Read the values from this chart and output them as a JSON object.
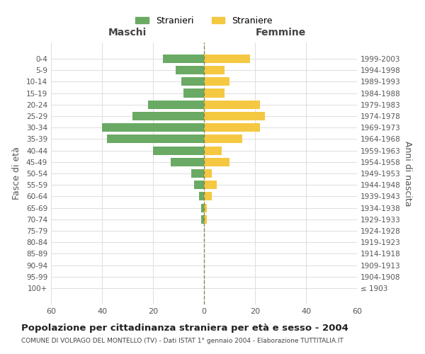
{
  "age_groups": [
    "100+",
    "95-99",
    "90-94",
    "85-89",
    "80-84",
    "75-79",
    "70-74",
    "65-69",
    "60-64",
    "55-59",
    "50-54",
    "45-49",
    "40-44",
    "35-39",
    "30-34",
    "25-29",
    "20-24",
    "15-19",
    "10-14",
    "5-9",
    "0-4"
  ],
  "birth_years": [
    "≤ 1903",
    "1904-1908",
    "1909-1913",
    "1914-1918",
    "1919-1923",
    "1924-1928",
    "1929-1933",
    "1934-1938",
    "1939-1943",
    "1944-1948",
    "1949-1953",
    "1954-1958",
    "1959-1963",
    "1964-1968",
    "1969-1973",
    "1974-1978",
    "1979-1983",
    "1984-1988",
    "1989-1993",
    "1994-1998",
    "1999-2003"
  ],
  "maschi": [
    0,
    0,
    0,
    0,
    0,
    0,
    1,
    1,
    2,
    4,
    5,
    13,
    20,
    38,
    40,
    28,
    22,
    8,
    9,
    11,
    16
  ],
  "femmine": [
    0,
    0,
    0,
    0,
    0,
    0,
    1,
    1,
    3,
    5,
    3,
    10,
    7,
    15,
    22,
    24,
    22,
    8,
    10,
    8,
    18
  ],
  "maschi_color": "#6aaa64",
  "femmine_color": "#f5c842",
  "title": "Popolazione per cittadinanza straniera per età e sesso - 2004",
  "subtitle": "COMUNE DI VOLPAGO DEL MONTELLO (TV) - Dati ISTAT 1° gennaio 2004 - Elaborazione TUTTITALIA.IT",
  "ylabel_left": "Fasce di età",
  "ylabel_right": "Anni di nascita",
  "xlabel_left": "Maschi",
  "xlabel_right": "Femmine",
  "legend_maschi": "Stranieri",
  "legend_femmine": "Straniere",
  "xlim": 60,
  "background_color": "#ffffff",
  "grid_color": "#dddddd"
}
